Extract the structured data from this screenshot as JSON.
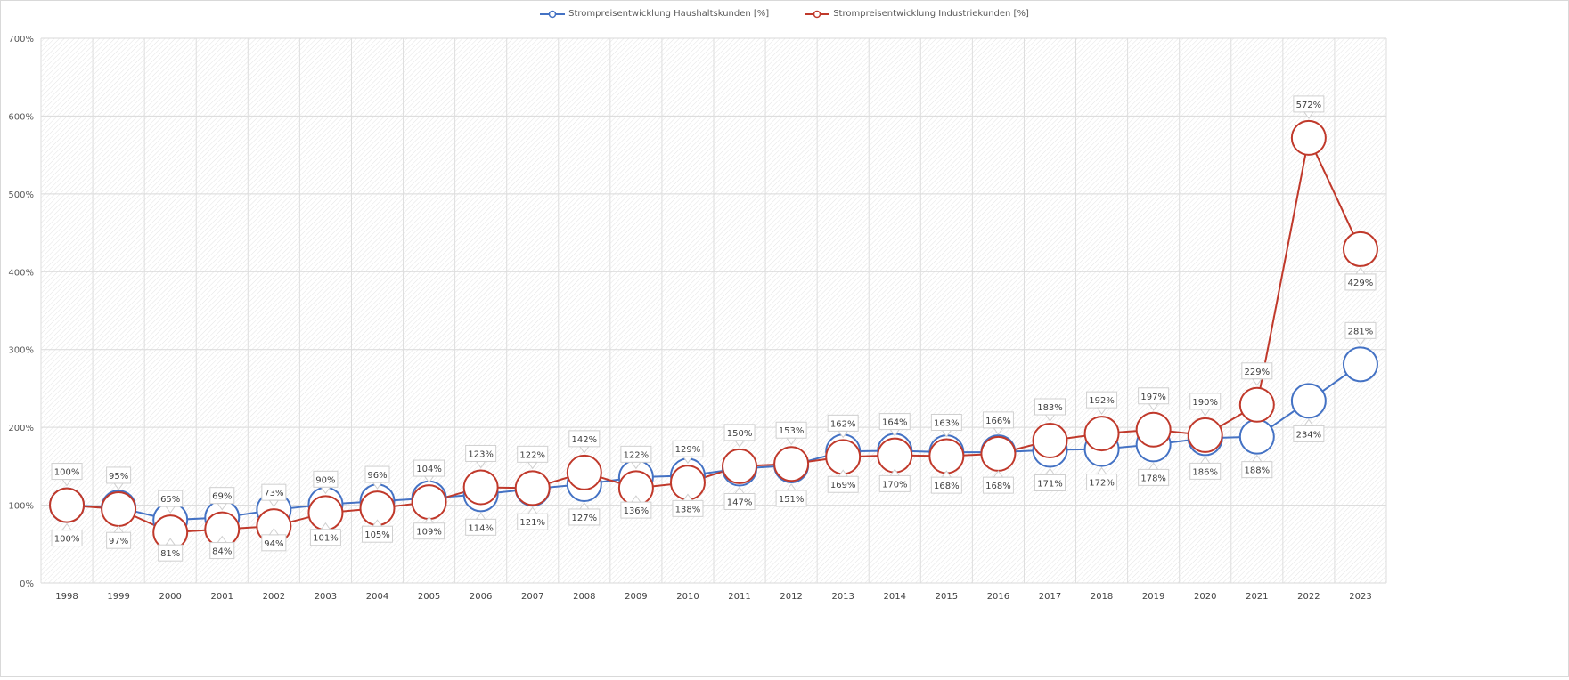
{
  "chart_data": {
    "type": "line",
    "title": "",
    "xlabel": "",
    "ylabel": "",
    "categories": [
      "1998",
      "1999",
      "2000",
      "2001",
      "2002",
      "2003",
      "2004",
      "2005",
      "2006",
      "2007",
      "2008",
      "2009",
      "2010",
      "2011",
      "2012",
      "2013",
      "2014",
      "2015",
      "2016",
      "2017",
      "2018",
      "2019",
      "2020",
      "2021",
      "2022",
      "2023"
    ],
    "ylim": [
      0,
      700
    ],
    "yticks": [
      "0%",
      "100%",
      "200%",
      "300%",
      "400%",
      "500%",
      "600%",
      "700%"
    ],
    "grid": true,
    "legend_position": "top",
    "series": [
      {
        "name": "Strompreisentwicklung Haushaltskunden [%]",
        "color": "#4472c4",
        "values": [
          100,
          97,
          81,
          84,
          94,
          101,
          105,
          109,
          114,
          121,
          127,
          136,
          138,
          147,
          151,
          169,
          170,
          168,
          168,
          171,
          172,
          178,
          186,
          188,
          234,
          281
        ]
      },
      {
        "name": "Strompreisentwicklung Industriekunden [%]",
        "color": "#c0392b",
        "values": [
          100,
          95,
          65,
          69,
          73,
          90,
          96,
          104,
          123,
          122,
          142,
          122,
          129,
          150,
          153,
          162,
          164,
          163,
          166,
          183,
          192,
          197,
          190,
          229,
          572,
          429
        ]
      }
    ]
  }
}
